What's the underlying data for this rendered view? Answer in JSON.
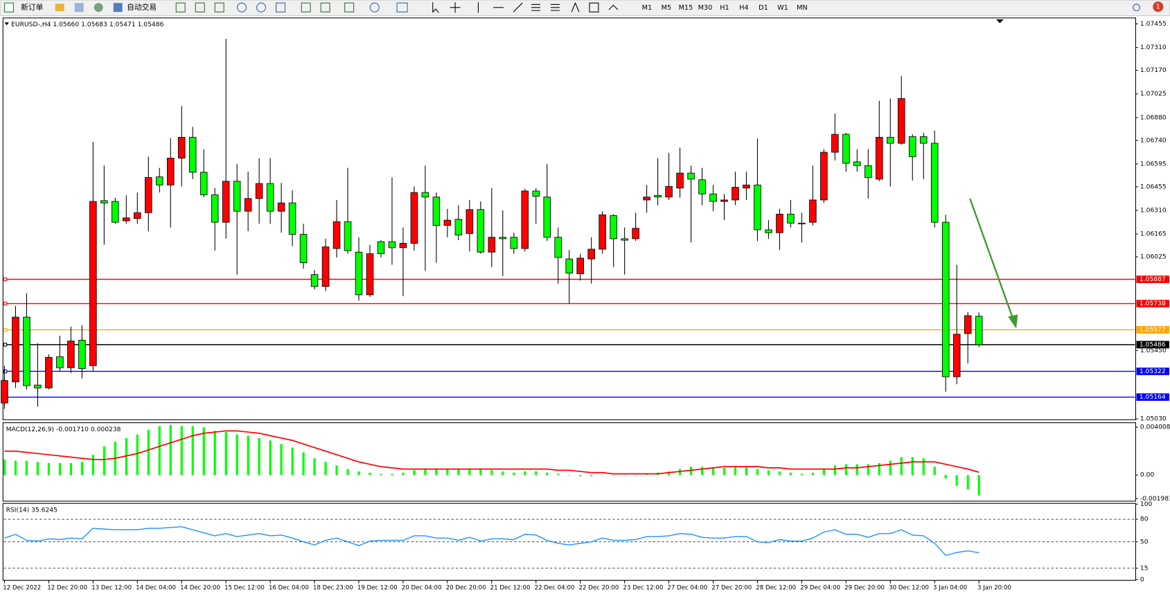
{
  "toolbar": {
    "new_order": "新订单",
    "auto_trading": "自动交易",
    "timeframes": [
      "M1",
      "M5",
      "M15",
      "M30",
      "H1",
      "H4",
      "D1",
      "W1",
      "MN"
    ],
    "notifications": 1
  },
  "chart_data": [
    {
      "type": "candlestick",
      "title": "EURUSD-,H4  1.05660 1.05683 1.05471 1.05486",
      "up_color": "#ff0000",
      "down_color": "#00ff00",
      "grid": false,
      "ylim": [
        1.05025,
        1.07487
      ],
      "yticks": [
        1.07455,
        {
          "value": 1.0731,
          "label": "1.07310"
        },
        {
          "value": 1.0717,
          "label": "1.07170"
        },
        1.07025,
        {
          "value": 1.0688,
          "label": "1.06880"
        },
        {
          "value": 1.0674,
          "label": "1.06740"
        },
        1.06595,
        1.06455,
        {
          "value": 1.0631,
          "label": "1.06310"
        },
        1.06165,
        1.06025,
        {
          "value": 1.0545,
          "label": "1.05450"
        },
        {
          "value": 1.0503,
          "label": "1.05030"
        }
      ],
      "levels": [
        {
          "value": 1.05887,
          "color": "#ff0000"
        },
        {
          "value": 1.05738,
          "color": "#ff0000"
        },
        {
          "value": 1.05577,
          "color": "#ffa500"
        },
        {
          "value": 1.05486,
          "color": "#000000"
        },
        {
          "value": 1.05322,
          "color": "#0000ff"
        },
        {
          "value": 1.05164,
          "color": "#0000ff"
        }
      ],
      "categories": [
        "12 Dec 2022",
        null,
        null,
        null,
        "12 Dec 20:00",
        null,
        null,
        null,
        "13 Dec 12:00",
        null,
        null,
        null,
        "14 Dec 04:00",
        null,
        null,
        null,
        "14 Dec 20:00",
        null,
        null,
        null,
        "15 Dec 12:00",
        null,
        null,
        null,
        "16 Dec 04:00",
        null,
        null,
        null,
        "18 Dec 23:00",
        null,
        null,
        null,
        "19 Dec 12:00",
        null,
        null,
        null,
        "20 Dec 04:00",
        null,
        null,
        null,
        "20 Dec 20:00",
        null,
        null,
        null,
        "21 Dec 12:00",
        null,
        null,
        null,
        "22 Dec 04:00",
        null,
        null,
        null,
        "22 Dec 20:00",
        null,
        null,
        null,
        "23 Dec 12:00",
        null,
        null,
        null,
        "27 Dec 04:00",
        null,
        null,
        null,
        "27 Dec 20:00",
        null,
        null,
        null,
        "28 Dec 12:00",
        null,
        null,
        null,
        "29 Dec 04:00",
        null,
        null,
        null,
        "29 Dec 20:00",
        null,
        null,
        null,
        "30 Dec 12:00",
        null,
        null,
        null,
        "3 Jan 04:00",
        null,
        null,
        null,
        "3 Jan 20:00"
      ],
      "candles": [
        [
          1.05128,
          1.05357,
          1.05092,
          1.05266
        ],
        [
          1.05257,
          1.05724,
          1.0522,
          1.05655
        ],
        [
          1.05655,
          1.05802,
          1.05211,
          1.05234
        ],
        [
          1.05238,
          1.05495,
          1.05105,
          1.0522
        ],
        [
          1.0522,
          1.05426,
          1.05211,
          1.05408
        ],
        [
          1.05412,
          1.05541,
          1.05325,
          1.05344
        ],
        [
          1.05344,
          1.05596,
          1.05312,
          1.05508
        ],
        [
          1.05513,
          1.05605,
          1.05279,
          1.05339
        ],
        [
          1.05357,
          1.06731,
          1.05325,
          1.06365
        ],
        [
          1.0637,
          1.06585,
          1.06099,
          1.06356
        ],
        [
          1.06365,
          1.06388,
          1.06228,
          1.06237
        ],
        [
          1.06246,
          1.06402,
          1.06228,
          1.06264
        ],
        [
          1.0626,
          1.0642,
          1.06228,
          1.06296
        ],
        [
          1.06296,
          1.0664,
          1.06182,
          1.06512
        ],
        [
          1.06516,
          1.06571,
          1.0642,
          1.06466
        ],
        [
          1.06466,
          1.06754,
          1.06205,
          1.06631
        ],
        [
          1.06631,
          1.06951,
          1.06457,
          1.06759
        ],
        [
          1.06759,
          1.06823,
          1.06502,
          1.06544
        ],
        [
          1.06544,
          1.06686,
          1.06392,
          1.06406
        ],
        [
          1.06406,
          1.06447,
          1.06063,
          1.06237
        ],
        [
          1.06237,
          1.07363,
          1.06136,
          1.06489
        ],
        [
          1.06489,
          1.06594,
          1.05916,
          1.06305
        ],
        [
          1.06305,
          1.06548,
          1.06182,
          1.06383
        ],
        [
          1.06383,
          1.06631,
          1.06228,
          1.06475
        ],
        [
          1.06475,
          1.06631,
          1.06228,
          1.06305
        ],
        [
          1.06305,
          1.06479,
          1.06173,
          1.06356
        ],
        [
          1.06356,
          1.06434,
          1.0609,
          1.06163
        ],
        [
          1.06163,
          1.06228,
          1.05953,
          1.05989
        ],
        [
          1.05916,
          1.05944,
          1.05825,
          1.05843
        ],
        [
          1.05843,
          1.06136,
          1.05815,
          1.06086
        ],
        [
          1.06076,
          1.06374,
          1.06021,
          1.06241
        ],
        [
          1.06241,
          1.06571,
          1.06044,
          1.06063
        ],
        [
          1.06054,
          1.06145,
          1.05756,
          1.05792
        ],
        [
          1.05792,
          1.06099,
          1.05779,
          1.06044
        ],
        [
          1.06118,
          1.06127,
          1.06021,
          1.06044
        ],
        [
          1.06118,
          1.06512,
          1.05976,
          1.06081
        ],
        [
          1.06081,
          1.06205,
          1.05783,
          1.06108
        ],
        [
          1.06108,
          1.06457,
          1.06063,
          1.0642
        ],
        [
          1.0642,
          1.06585,
          1.05939,
          1.06392
        ],
        [
          1.06392,
          1.0642,
          1.05989,
          1.06218
        ],
        [
          1.06218,
          1.06319,
          1.06145,
          1.0625
        ],
        [
          1.06255,
          1.06342,
          1.06127,
          1.06159
        ],
        [
          1.06168,
          1.06374,
          1.06058,
          1.06315
        ],
        [
          1.06315,
          1.06365,
          1.06044,
          1.06054
        ],
        [
          1.06054,
          1.06447,
          1.05962,
          1.06145
        ],
        [
          1.06145,
          1.0631,
          1.05907,
          1.06136
        ],
        [
          1.06145,
          1.06173,
          1.06044,
          1.06076
        ],
        [
          1.06076,
          1.06443,
          1.06058,
          1.06429
        ],
        [
          1.06429,
          1.06447,
          1.06228,
          1.06397
        ],
        [
          1.06392,
          1.06594,
          1.06122,
          1.06145
        ],
        [
          1.06145,
          1.06205,
          1.05861,
          1.06021
        ],
        [
          1.06012,
          1.06067,
          1.05737,
          1.05925
        ],
        [
          1.05921,
          1.06044,
          1.05879,
          1.06017
        ],
        [
          1.06012,
          1.06145,
          1.05861,
          1.06072
        ],
        [
          1.06072,
          1.06305,
          1.06044,
          1.06283
        ],
        [
          1.06278,
          1.06287,
          1.05962,
          1.06136
        ],
        [
          1.06136,
          1.06205,
          1.05916,
          1.06127
        ],
        [
          1.06136,
          1.06296,
          1.06122,
          1.062
        ],
        [
          1.06374,
          1.06466,
          1.06296,
          1.06392
        ],
        [
          1.06402,
          1.06631,
          1.06342,
          1.06392
        ],
        [
          1.06392,
          1.06663,
          1.06374,
          1.06457
        ],
        [
          1.06447,
          1.06695,
          1.06388,
          1.06539
        ],
        [
          1.06539,
          1.06585,
          1.06113,
          1.06502
        ],
        [
          1.06498,
          1.06571,
          1.06342,
          1.06411
        ],
        [
          1.06411,
          1.06466,
          1.06305,
          1.06365
        ],
        [
          1.06365,
          1.06411,
          1.0625,
          1.06374
        ],
        [
          1.06374,
          1.06548,
          1.06342,
          1.06452
        ],
        [
          1.06447,
          1.06548,
          1.06374,
          1.06466
        ],
        [
          1.06466,
          1.0675,
          1.06122,
          1.06191
        ],
        [
          1.06191,
          1.0625,
          1.06136,
          1.06173
        ],
        [
          1.06173,
          1.06319,
          1.06067,
          1.06287
        ],
        [
          1.06287,
          1.06374,
          1.06205,
          1.06232
        ],
        [
          1.06232,
          1.06296,
          1.06113,
          1.06228
        ],
        [
          1.06237,
          1.06585,
          1.06218,
          1.06374
        ],
        [
          1.06374,
          1.06686,
          1.06356,
          1.06667
        ],
        [
          1.06667,
          1.06905,
          1.06617,
          1.06777
        ],
        [
          1.06777,
          1.06786,
          1.06548,
          1.06599
        ],
        [
          1.06608,
          1.06686,
          1.06548,
          1.06585
        ],
        [
          1.06585,
          1.06686,
          1.06383,
          1.06512
        ],
        [
          1.06502,
          1.06983,
          1.06489,
          1.06759
        ],
        [
          1.06759,
          1.06997,
          1.06457,
          1.06722
        ],
        [
          1.06722,
          1.07134,
          1.06713,
          1.06997
        ],
        [
          1.06763,
          1.06777,
          1.06493,
          1.0664
        ],
        [
          1.06763,
          1.06786,
          1.06502,
          1.06722
        ],
        [
          1.06722,
          1.068,
          1.06205,
          1.06237
        ],
        [
          1.06237,
          1.06283,
          1.05197,
          1.05289
        ],
        [
          1.05289,
          1.05976,
          1.05243,
          1.0555
        ],
        [
          1.05554,
          1.05687,
          1.05371,
          1.05664
        ],
        [
          1.0566,
          1.05683,
          1.05471,
          1.05486
        ]
      ]
    },
    {
      "type": "macd",
      "title": "MACD(12,26,9) -0.001710 0.000238",
      "ylim": [
        -0.00219,
        0.00432
      ],
      "yticks": [
        0.004008,
        {
          "value": 0,
          "label": "0.00"
        },
        -0.001983
      ],
      "histogram": {
        "color": "#00ff00",
        "values": [
          0.0013,
          0.0012,
          0.0012,
          0.0011,
          0.001,
          0.001,
          0.001,
          0.0011,
          0.0017,
          0.0024,
          0.0028,
          0.0031,
          0.0034,
          0.0038,
          0.0041,
          0.0042,
          0.0041,
          0.0041,
          0.004,
          0.0037,
          0.0036,
          0.0034,
          0.0033,
          0.0031,
          0.0029,
          0.0026,
          0.0023,
          0.0019,
          0.0014,
          0.0011,
          0.0008,
          0.0005,
          0.0003,
          0.0002,
          0.0001,
          0.0001,
          0.0002,
          0.0004,
          0.0005,
          0.0005,
          0.0005,
          0.0005,
          0.0005,
          0.0005,
          0.0004,
          0.0003,
          0.0002,
          0.0003,
          0.0003,
          0.0002,
          0.0001,
          0,
          -0.0001,
          -0.0001,
          0,
          0,
          0,
          0,
          0.0001,
          0.0002,
          0.0003,
          0.0005,
          0.0007,
          0.0007,
          0.0006,
          0.0006,
          0.0007,
          0.0007,
          0.0005,
          0.0004,
          0.0003,
          0.0002,
          0.0001,
          0.0002,
          0.0005,
          0.0008,
          0.0009,
          0.0009,
          0.0009,
          0.001,
          0.0012,
          0.0015,
          0.0015,
          0.0014,
          0.0007,
          -0.0003,
          -0.0009,
          -0.0012,
          -0.00171
        ]
      },
      "signal": {
        "color": "#ff0000",
        "values": [
          0.002,
          0.002,
          0.0019,
          0.0018,
          0.0017,
          0.0016,
          0.0015,
          0.0014,
          0.0013,
          0.0013,
          0.0014,
          0.0016,
          0.0018,
          0.0021,
          0.0024,
          0.0027,
          0.003,
          0.0033,
          0.0035,
          0.0036,
          0.0037,
          0.0037,
          0.0036,
          0.0035,
          0.0033,
          0.0031,
          0.0029,
          0.0026,
          0.0023,
          0.002,
          0.0017,
          0.0014,
          0.0011,
          0.0009,
          0.0007,
          0.0006,
          0.0005,
          0.0005,
          0.0005,
          0.0005,
          0.0005,
          0.0005,
          0.0005,
          0.0005,
          0.0005,
          0.0005,
          0.0005,
          0.0005,
          0.0005,
          0.0005,
          0.0004,
          0.0004,
          0.0003,
          0.0002,
          0.0002,
          0.0001,
          0.0001,
          0.0001,
          0.0001,
          0.0001,
          0.0002,
          0.0003,
          0.0004,
          0.0005,
          0.0006,
          0.0007,
          0.0007,
          0.0007,
          0.0007,
          0.0006,
          0.0006,
          0.0005,
          0.0005,
          0.0005,
          0.0005,
          0.0005,
          0.0006,
          0.0006,
          0.0007,
          0.0008,
          0.0009,
          0.001,
          0.0011,
          0.0011,
          0.0011,
          0.0009,
          0.0007,
          0.0005,
          0.000238
        ]
      }
    },
    {
      "type": "line",
      "title": "RSI(14) 35.6245",
      "ylim": [
        0,
        100
      ],
      "yticks": [
        100,
        80,
        50,
        15,
        0
      ],
      "levels": [
        80,
        50,
        15
      ],
      "color": "#1e90ff",
      "values": [
        55,
        60,
        52,
        51,
        54,
        53,
        55,
        54,
        68,
        67,
        66,
        66,
        66,
        68,
        68,
        69,
        70,
        66,
        62,
        58,
        61,
        57,
        59,
        61,
        58,
        59,
        55,
        50,
        46,
        52,
        55,
        50,
        45,
        51,
        52,
        52,
        52,
        58,
        58,
        55,
        55,
        52,
        56,
        51,
        54,
        54,
        53,
        60,
        59,
        52,
        48,
        46,
        48,
        50,
        55,
        52,
        52,
        53,
        57,
        57,
        58,
        61,
        60,
        56,
        55,
        55,
        57,
        57,
        50,
        49,
        53,
        51,
        51,
        55,
        63,
        66,
        60,
        60,
        56,
        61,
        61,
        66,
        59,
        58,
        48,
        32,
        36,
        38,
        35.6245
      ]
    }
  ]
}
